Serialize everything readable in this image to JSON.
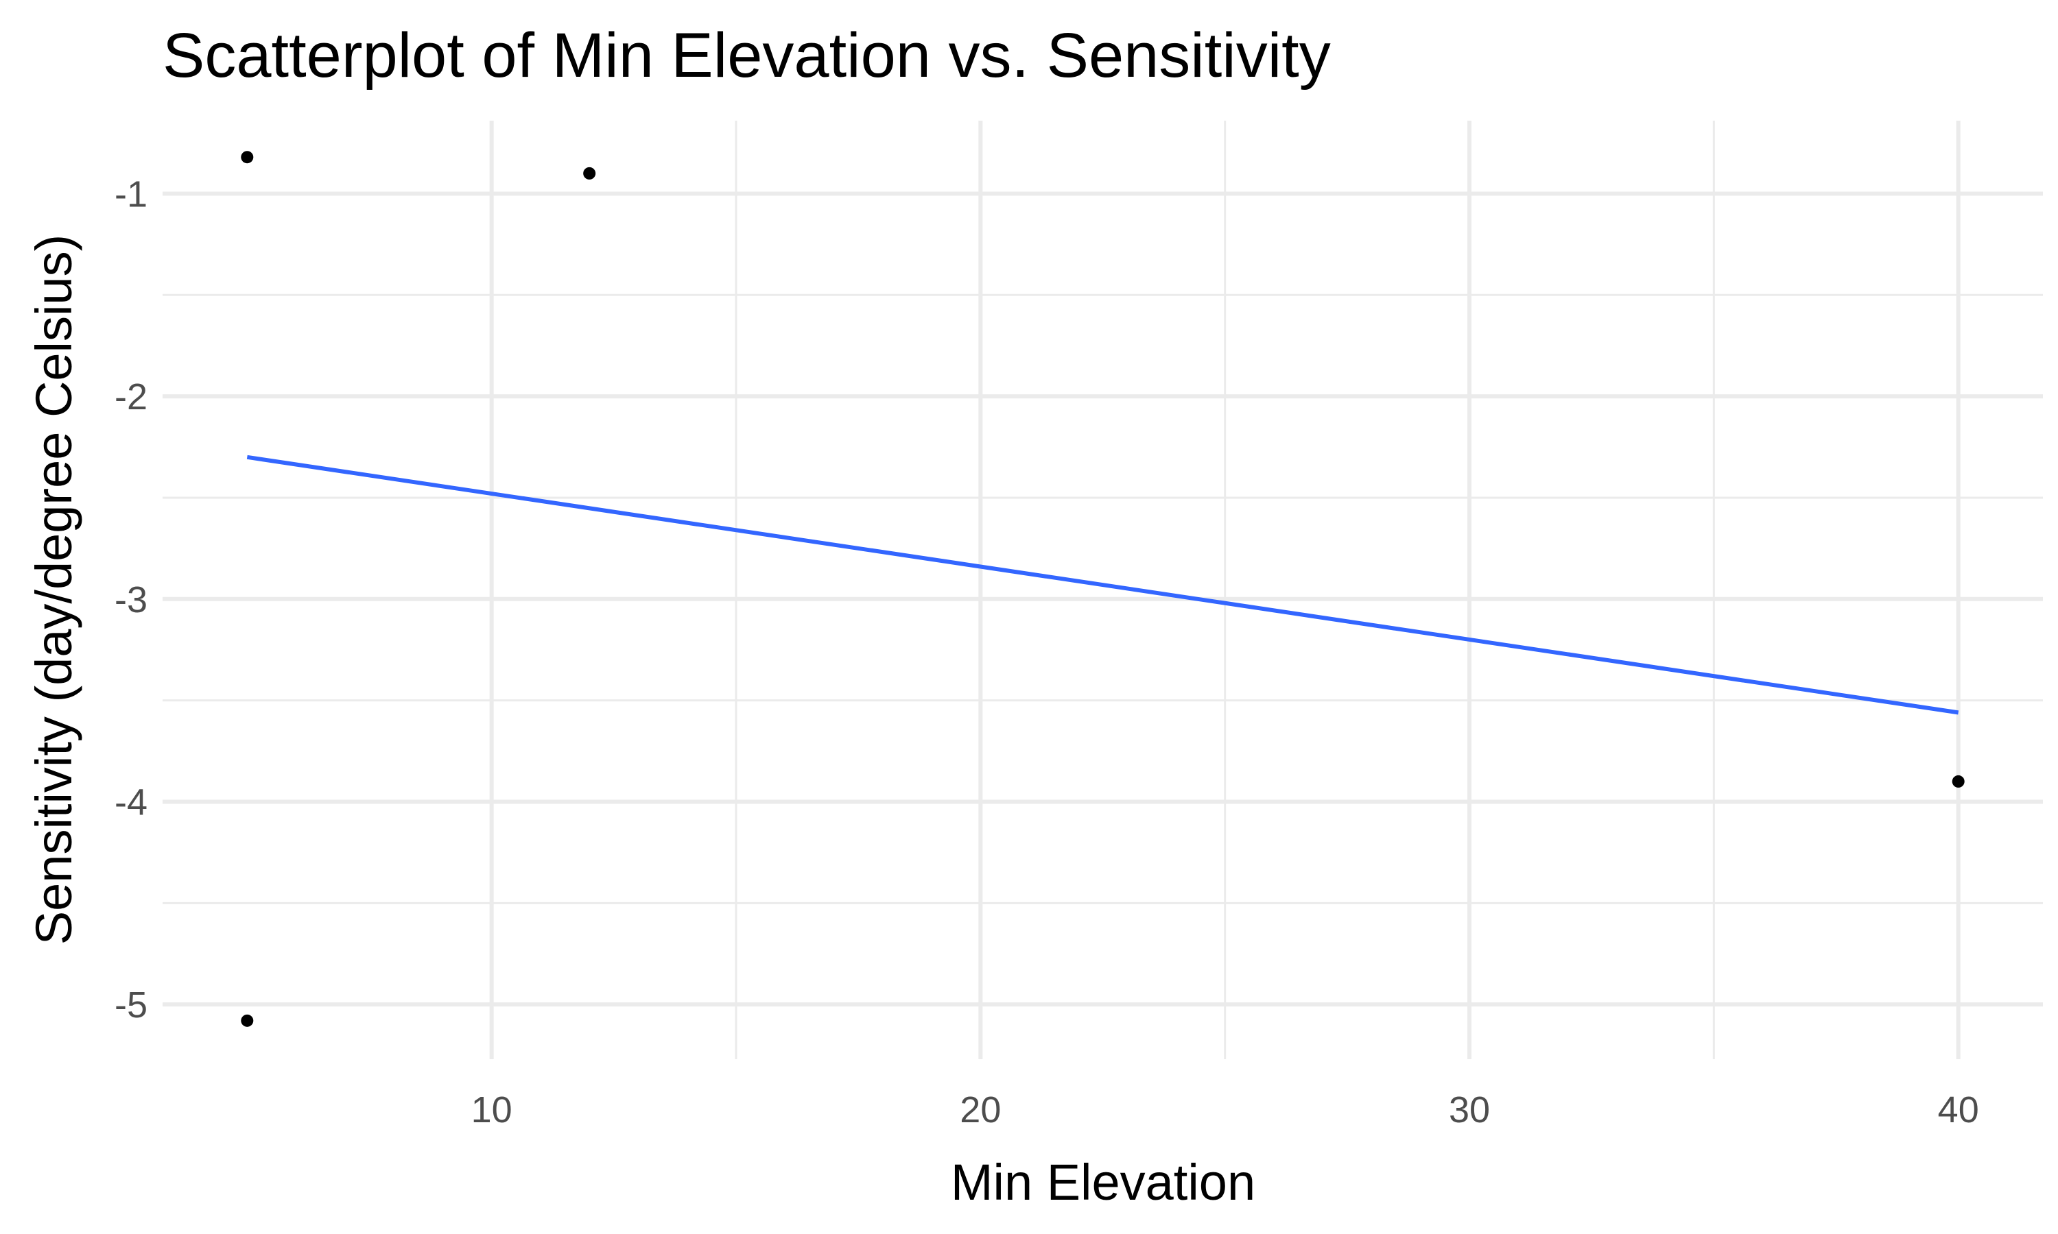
{
  "chart_data": {
    "type": "scatter",
    "title": "Scatterplot of Min Elevation vs. Sensitivity",
    "xlabel": "Min Elevation",
    "ylabel": "Sensitivity (day/degree Celsius)",
    "xlim": [
      3.27,
      41.73
    ],
    "ylim": [
      -5.27,
      -0.64
    ],
    "xticks": [
      10,
      20,
      30,
      40
    ],
    "xticks_minor": [
      15,
      25,
      35
    ],
    "yticks": [
      -5,
      -4,
      -3,
      -2,
      -1
    ],
    "yticks_minor": [
      -4.5,
      -3.5,
      -2.5,
      -1.5
    ],
    "grid": true,
    "legend": "none",
    "series": [
      {
        "x": [
          5,
          12,
          5,
          40
        ],
        "y": [
          -0.82,
          -0.9,
          -5.08,
          -3.9
        ],
        "color": "#000000"
      }
    ],
    "trend_line": {
      "x": [
        5,
        40
      ],
      "y": [
        -2.3,
        -3.56
      ],
      "color": "#3366ff"
    }
  }
}
